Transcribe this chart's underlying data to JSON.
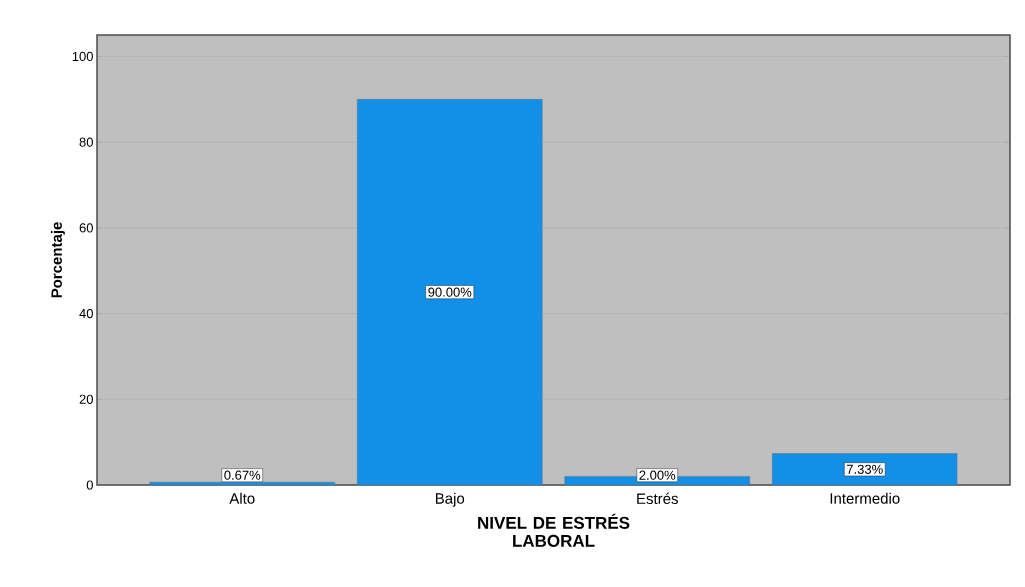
{
  "chart_data": {
    "type": "bar",
    "categories": [
      "Alto",
      "Bajo",
      "Estrés",
      "Intermedio"
    ],
    "values": [
      0.67,
      90.0,
      2.0,
      7.33
    ],
    "value_labels": [
      "0.67%",
      "90.00%",
      "2.00%",
      "7.33%"
    ],
    "color": "#1290e8",
    "xlabel": "NIVEL DE ESTRÉS LABORAL",
    "ylabel": "Porcentaje",
    "ylim": [
      0,
      105
    ],
    "yticks": [
      0,
      20,
      40,
      60,
      80,
      100
    ],
    "grid": "y"
  }
}
